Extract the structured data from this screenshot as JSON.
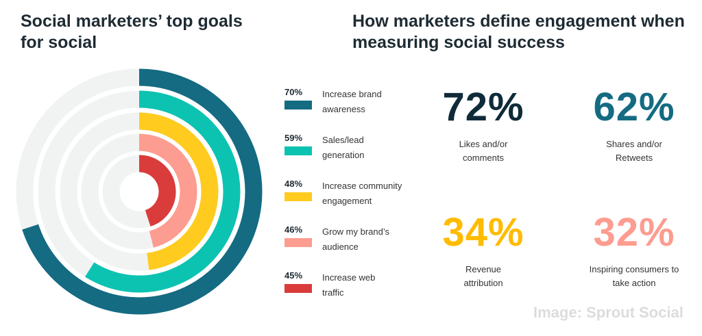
{
  "left_title": "Social marketers’ top goals for social",
  "right_title": "How marketers define engagement when measuring social success",
  "chart_data": {
    "type": "radial-bar",
    "title": "Social marketers’ top goals for social",
    "max": 100,
    "series": [
      {
        "label": "Increase brand awareness",
        "value": 70,
        "value_label": "70%",
        "color": "#146b82"
      },
      {
        "label": "Sales/lead generation",
        "value": 59,
        "value_label": "59%",
        "color": "#0cc3b1"
      },
      {
        "label": "Increase community engagement",
        "value": 48,
        "value_label": "48%",
        "color": "#ffcb1f"
      },
      {
        "label": "Grow my brand’s audience",
        "value": 46,
        "value_label": "46%",
        "color": "#fd9c90"
      },
      {
        "label": "Increase web traffic",
        "value": 45,
        "value_label": "45%",
        "color": "#d93c3b"
      }
    ],
    "track_color": "#f1f3f3"
  },
  "stats": [
    {
      "value": "72%",
      "label": "Likes and/or comments",
      "color": "#0f2b3a"
    },
    {
      "value": "62%",
      "label": "Shares and/or Retweets",
      "color": "#146b82"
    },
    {
      "value": "34%",
      "label": "Revenue attribution",
      "color": "#ffbb00"
    },
    {
      "value": "32%",
      "label": "Inspiring consumers to take action",
      "color": "#fd9c90"
    }
  ],
  "credit": "Image: Sprout Social"
}
